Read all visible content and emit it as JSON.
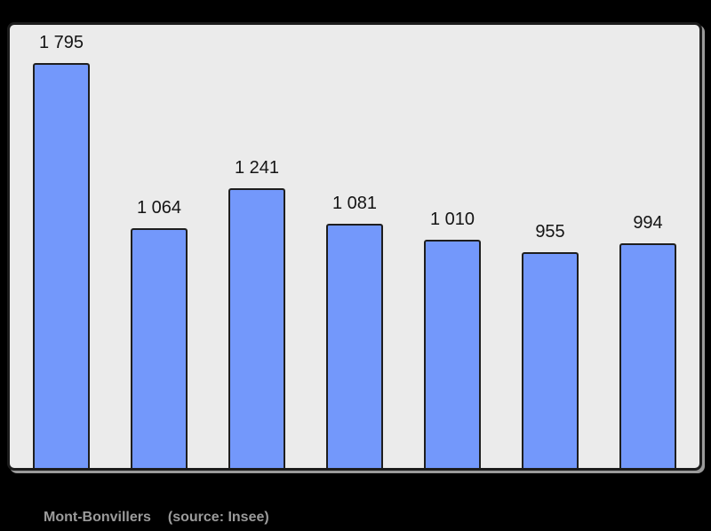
{
  "page": {
    "background": "#000000"
  },
  "chart_data": {
    "type": "bar",
    "title": "",
    "xlabel": "",
    "ylabel": "",
    "categories": [
      "",
      "",
      "",
      "",
      "",
      "",
      ""
    ],
    "values": [
      1795,
      1064,
      1241,
      1081,
      1010,
      955,
      994
    ],
    "labels": [
      "1 795",
      "1 064",
      "1 241",
      "1 081",
      "1 010",
      "955",
      "994"
    ],
    "ylim": [
      0,
      1965
    ],
    "grid": false,
    "legend": false,
    "bar_color": "#7398fb",
    "bar_border_color": "#1e1e1e",
    "plot_background": "#ebebeb",
    "label_color": "#141414"
  },
  "caption": {
    "commune": "Mont-Bonvillers",
    "source": "(source: Insee)",
    "color": "#9b9b9b"
  }
}
